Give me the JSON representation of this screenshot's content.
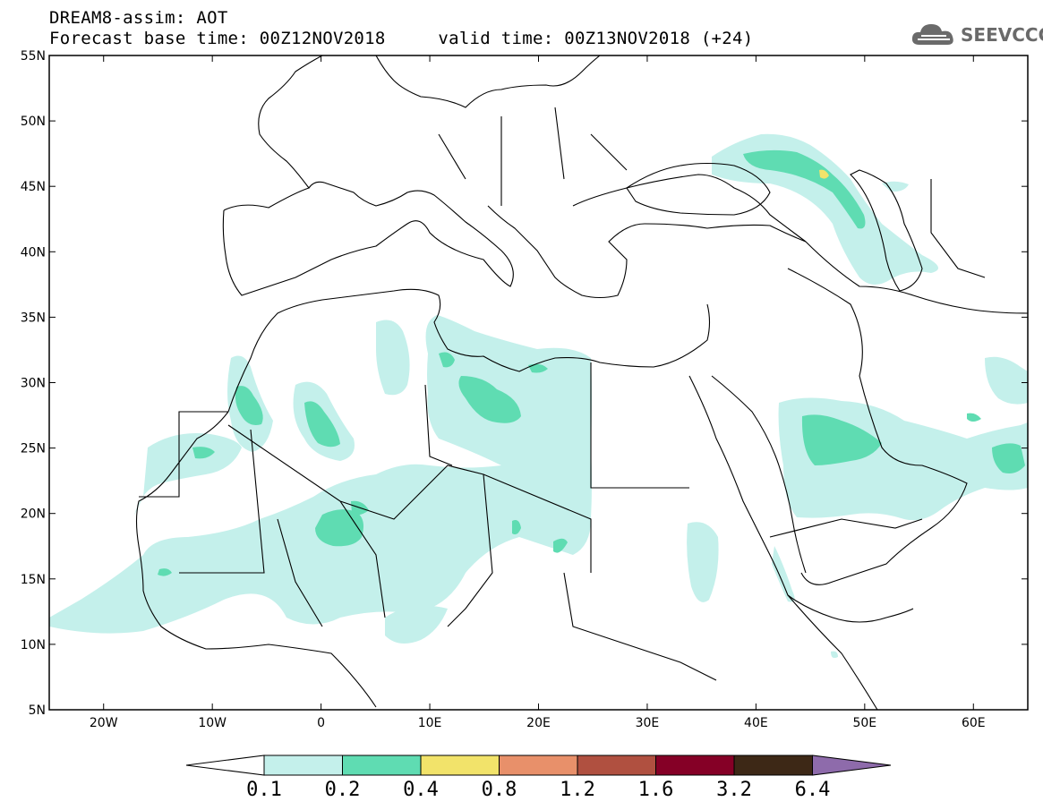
{
  "header": {
    "line1": "DREAM8-assim: AOT",
    "line2": "Forecast base time: 00Z12NOV2018     valid time: 00Z13NOV2018 (+24)"
  },
  "logo": {
    "text": "SEEVCCC",
    "icon": "cloud-icon",
    "color": "#6a6a6a"
  },
  "map": {
    "lon_range": [
      -25,
      65
    ],
    "lat_range": [
      5,
      55
    ],
    "lat_ticks": [
      "55N",
      "50N",
      "45N",
      "40N",
      "35N",
      "30N",
      "25N",
      "20N",
      "15N",
      "10N",
      "5N"
    ],
    "lon_ticks": [
      "20W",
      "10W",
      "0",
      "10E",
      "20E",
      "30E",
      "40E",
      "50E",
      "60E"
    ],
    "colors": {
      "level_0_1": "#c4f0eb",
      "level_0_2": "#5fdcb2",
      "level_0_4": "#f2e36a",
      "coast": "#000000"
    }
  },
  "colorbar": {
    "labels": [
      "0.1",
      "0.2",
      "0.4",
      "0.8",
      "1.2",
      "1.6",
      "3.2",
      "6.4"
    ],
    "colors": [
      "#c4f0eb",
      "#5fdcb2",
      "#f2e36a",
      "#e8906a",
      "#b05040",
      "#850026",
      "#3d2816",
      "#8e6bab"
    ],
    "low_end_color": "#ffffff"
  }
}
